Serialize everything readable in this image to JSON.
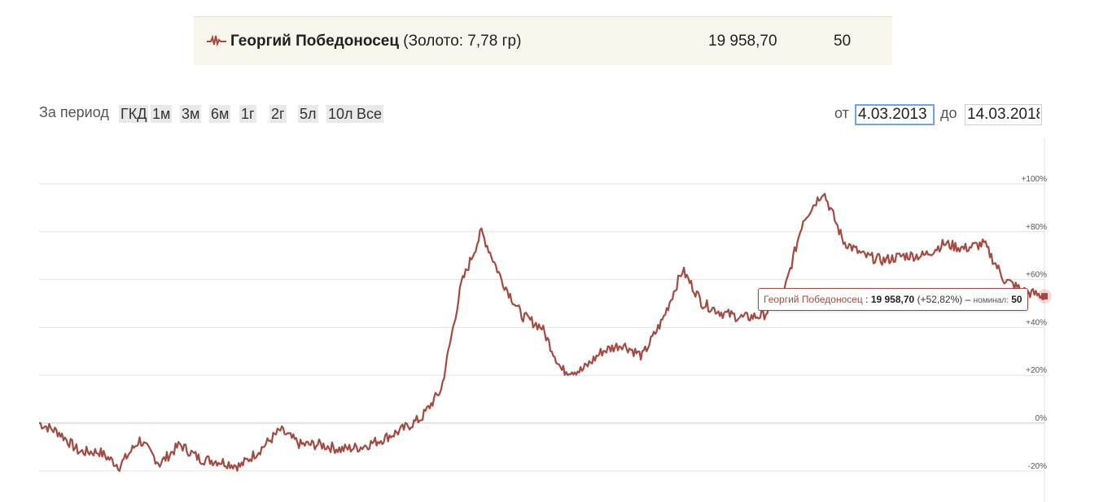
{
  "coin": {
    "name": "Георгий Победоносец",
    "detail": "(Золото: 7,78 гр)",
    "price": "19 958,70",
    "nominal": "50",
    "icon": "pulse-chart-icon",
    "color": "#a44a40"
  },
  "period": {
    "label": "За период",
    "buttons": [
      "ГКД",
      "1м",
      "3м",
      "6м",
      "1г",
      "2г",
      "5л",
      "10л",
      "Все"
    ]
  },
  "dates": {
    "from_label": "от",
    "from_value": "4.03.2013",
    "to_label": "до",
    "to_value": "14.03.2018"
  },
  "chart_data": {
    "type": "line",
    "series": [
      {
        "name": "Георгий Победоносец",
        "color": "#a44a40",
        "x_index": [
          0,
          2,
          4,
          6,
          8,
          10,
          12,
          14,
          16,
          18,
          20,
          22,
          24,
          26,
          28,
          30,
          32,
          34,
          36,
          38,
          40,
          42,
          44,
          46,
          48,
          50,
          52,
          54,
          56,
          58,
          60,
          62,
          64,
          66,
          68,
          70,
          72,
          74,
          76,
          78,
          80,
          82,
          84,
          86,
          88,
          90,
          92,
          94,
          96,
          98,
          100
        ],
        "values": [
          0,
          -4,
          -12,
          -12,
          -18,
          -7,
          -17,
          -9,
          -15,
          -16,
          -18,
          -11,
          -3,
          -9,
          -9,
          -11,
          -10,
          -7,
          -3,
          2,
          14,
          58,
          80,
          60,
          45,
          40,
          22,
          22,
          30,
          33,
          28,
          43,
          64,
          50,
          46,
          44,
          45,
          53,
          85,
          97,
          76,
          70,
          68,
          70,
          70,
          75,
          73,
          75,
          60,
          55,
          53
        ]
      }
    ],
    "y_ticks": [
      "+100%",
      "+80%",
      "+60%",
      "+40%",
      "+20%",
      "0%",
      "-20%"
    ],
    "ylim": [
      -25,
      120
    ],
    "grid": true,
    "tooltip": {
      "name": "Георгий Победоносец",
      "price": "19 958,70",
      "change": "(+52,82%)",
      "nominal_label": "номинал:",
      "nominal": "50"
    }
  }
}
